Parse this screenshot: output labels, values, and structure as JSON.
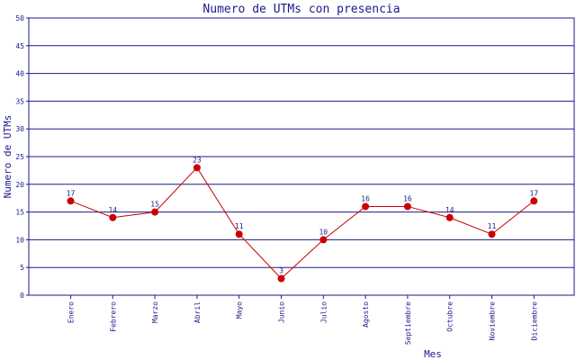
{
  "chart_data": {
    "type": "line",
    "title": "Numero de UTMs con presencia",
    "xlabel": "Mes",
    "ylabel": "Numero de UTMs",
    "categories": [
      "Enero",
      "Febrero",
      "Marzo",
      "Abril",
      "Mayo",
      "Junio",
      "Julio",
      "Agosto",
      "Septiembre",
      "Octubre",
      "Noviembre",
      "Diciembre"
    ],
    "values": [
      17,
      14,
      15,
      23,
      11,
      3,
      10,
      16,
      16,
      14,
      11,
      17
    ],
    "ylim": [
      0,
      50
    ],
    "yticks": [
      0,
      5,
      10,
      15,
      20,
      25,
      30,
      35,
      40,
      45,
      50
    ],
    "grid": true,
    "legend": "none",
    "colors": {
      "line": "#cc0000",
      "marker": "#cc0000",
      "grid": "#1a1a8c",
      "text": "#1a1a8c"
    }
  }
}
